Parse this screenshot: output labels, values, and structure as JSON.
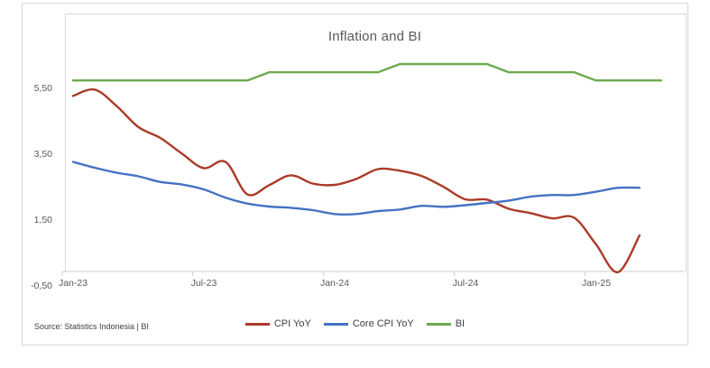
{
  "title": "Inflation and BI",
  "source_note": "Source: Statistics Indonesia | BI",
  "colors": {
    "cpi": "#AB3A27",
    "core": "#4472C4",
    "bi": "#6CAB4F",
    "axis_text": "#595959",
    "frame_border": "#D9D9D9",
    "axis_line": "#D0CECE"
  },
  "chart_data": {
    "type": "line",
    "title": "Inflation and BI",
    "grid": false,
    "legend_position": "bottom",
    "categories": [
      "Jan-23",
      "Feb-23",
      "Mar-23",
      "Apr-23",
      "May-23",
      "Jun-23",
      "Jul-23",
      "Aug-23",
      "Sep-23",
      "Oct-23",
      "Nov-23",
      "Dec-23",
      "Jan-24",
      "Feb-24",
      "Mar-24",
      "Apr-24",
      "May-24",
      "Jun-24",
      "Jul-24",
      "Aug-24",
      "Sep-24",
      "Oct-24",
      "Nov-24",
      "Dec-24",
      "Jan-25",
      "Feb-25",
      "Mar-25",
      "Apr-25"
    ],
    "series": [
      {
        "name": "CPI YoY",
        "color_key": "cpi",
        "smooth": true,
        "values": [
          5.28,
          5.47,
          4.97,
          4.33,
          4.0,
          3.52,
          3.08,
          3.27,
          2.28,
          2.56,
          2.86,
          2.61,
          2.57,
          2.75,
          3.05,
          3.0,
          2.84,
          2.51,
          2.13,
          2.12,
          1.84,
          1.71,
          1.55,
          1.57,
          0.76,
          -0.09,
          1.03
        ]
      },
      {
        "name": "Core CPI YoY",
        "color_key": "core",
        "smooth": true,
        "values": [
          3.27,
          3.09,
          2.94,
          2.83,
          2.66,
          2.58,
          2.43,
          2.18,
          2.0,
          1.91,
          1.87,
          1.8,
          1.68,
          1.68,
          1.77,
          1.82,
          1.93,
          1.9,
          1.95,
          2.02,
          2.09,
          2.21,
          2.26,
          2.26,
          2.36,
          2.48,
          2.48
        ]
      },
      {
        "name": "BI",
        "color_key": "bi",
        "smooth": false,
        "values": [
          5.75,
          5.75,
          5.75,
          5.75,
          5.75,
          5.75,
          5.75,
          5.75,
          5.75,
          6.0,
          6.0,
          6.0,
          6.0,
          6.0,
          6.0,
          6.25,
          6.25,
          6.25,
          6.25,
          6.25,
          6.0,
          6.0,
          6.0,
          6.0,
          5.75,
          5.75,
          5.75,
          5.75
        ]
      }
    ],
    "y_axis": {
      "min": -0.5,
      "tick_values": [
        -0.5,
        1.5,
        3.5,
        5.5
      ],
      "tick_labels": [
        "-0,50",
        "1,50",
        "3,50",
        "5,50"
      ]
    },
    "x_axis": {
      "tick_month_indices": [
        0,
        6,
        12,
        18,
        24
      ],
      "tick_labels": [
        "Jan-23",
        "Jul-23",
        "Jan-24",
        "Jul-24",
        "Jan-25"
      ]
    },
    "legend": [
      "CPI YoY",
      "Core CPI YoY",
      "BI"
    ]
  }
}
